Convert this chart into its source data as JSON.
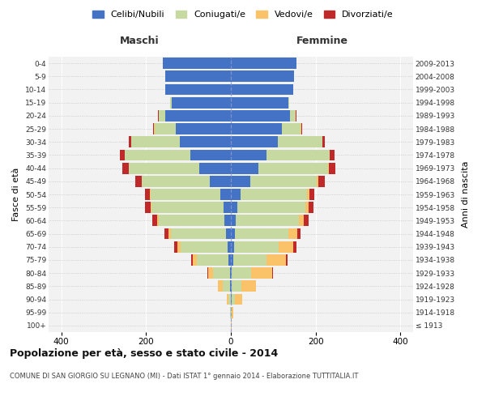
{
  "age_groups": [
    "100+",
    "95-99",
    "90-94",
    "85-89",
    "80-84",
    "75-79",
    "70-74",
    "65-69",
    "60-64",
    "55-59",
    "50-54",
    "45-49",
    "40-44",
    "35-39",
    "30-34",
    "25-29",
    "20-24",
    "15-19",
    "10-14",
    "5-9",
    "0-4"
  ],
  "birth_years": [
    "≤ 1913",
    "1914-1918",
    "1919-1923",
    "1924-1928",
    "1929-1933",
    "1934-1938",
    "1939-1943",
    "1944-1948",
    "1949-1953",
    "1954-1958",
    "1959-1963",
    "1964-1968",
    "1969-1973",
    "1974-1978",
    "1979-1983",
    "1984-1988",
    "1989-1993",
    "1994-1998",
    "1999-2003",
    "2004-2008",
    "2009-2013"
  ],
  "colors": {
    "celibi": "#4472C4",
    "coniugati": "#C5D9A0",
    "vedovi": "#FAC36A",
    "divorziati": "#C0292A"
  },
  "m_celibi": [
    0,
    0,
    0,
    2,
    2,
    5,
    8,
    12,
    15,
    18,
    25,
    50,
    75,
    95,
    120,
    130,
    155,
    140,
    155,
    155,
    160
  ],
  "m_coniugati": [
    0,
    1,
    5,
    18,
    40,
    75,
    110,
    130,
    155,
    170,
    165,
    160,
    165,
    155,
    115,
    50,
    15,
    3,
    0,
    0,
    0
  ],
  "m_vedovi": [
    0,
    1,
    5,
    10,
    12,
    10,
    8,
    5,
    3,
    2,
    2,
    1,
    1,
    1,
    1,
    1,
    1,
    0,
    0,
    0,
    0
  ],
  "m_divorziati": [
    0,
    0,
    0,
    1,
    2,
    4,
    8,
    10,
    12,
    12,
    10,
    15,
    15,
    10,
    5,
    2,
    1,
    0,
    0,
    0,
    0
  ],
  "f_nubili": [
    0,
    0,
    1,
    2,
    2,
    5,
    8,
    10,
    12,
    15,
    22,
    45,
    65,
    85,
    110,
    120,
    140,
    135,
    148,
    150,
    155
  ],
  "f_coniugate": [
    0,
    2,
    8,
    22,
    45,
    80,
    105,
    125,
    148,
    160,
    158,
    158,
    165,
    148,
    105,
    45,
    12,
    3,
    0,
    0,
    0
  ],
  "f_vedove": [
    2,
    4,
    18,
    35,
    50,
    45,
    35,
    22,
    12,
    8,
    5,
    3,
    2,
    1,
    1,
    1,
    1,
    0,
    0,
    0,
    0
  ],
  "f_divorziate": [
    0,
    0,
    0,
    1,
    2,
    4,
    6,
    8,
    12,
    12,
    12,
    15,
    15,
    10,
    5,
    2,
    1,
    0,
    0,
    0,
    0
  ],
  "xlim": 430,
  "title": "Popolazione per età, sesso e stato civile - 2014",
  "subtitle": "COMUNE DI SAN GIORGIO SU LEGNANO (MI) - Dati ISTAT 1° gennaio 2014 - Elaborazione TUTTITALIA.IT",
  "ylabel_left": "Fasce di età",
  "ylabel_right": "Anni di nascita",
  "maschi_label": "Maschi",
  "femmine_label": "Femmine",
  "legend_items": [
    "Celibi/Nubili",
    "Coniugati/e",
    "Vedovi/e",
    "Divorziati/e"
  ],
  "background_color": "#FFFFFF",
  "plot_bg_color": "#F2F2F2"
}
